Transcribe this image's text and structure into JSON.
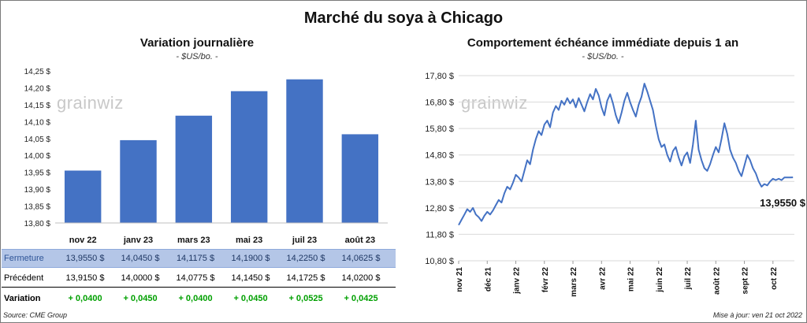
{
  "title": "Marché du soya à Chicago",
  "left": {
    "title": "Variation journalière",
    "subtitle": "- $US/bo. -",
    "watermark": "grainwiz"
  },
  "right": {
    "title": "Comportement échéance immédiate depuis 1 an",
    "subtitle": "- $US/bo. -",
    "watermark": "grainwiz",
    "last_label": "13,9550 $"
  },
  "table": {
    "rows": [
      {
        "label": "Fermeture",
        "values": [
          "13,9550  $",
          "14,0450  $",
          "14,1175  $",
          "14,1900  $",
          "14,2250  $",
          "14,0625  $"
        ]
      },
      {
        "label": "Précédent",
        "values": [
          "13,9150  $",
          "14,0000  $",
          "14,0775  $",
          "14,1450  $",
          "14,1725  $",
          "14,0200  $"
        ]
      },
      {
        "label": "Variation",
        "values": [
          "+ 0,0400",
          "+ 0,0450",
          "+ 0,0400",
          "+ 0,0450",
          "+ 0,0525",
          "+ 0,0425"
        ]
      }
    ]
  },
  "footer": {
    "source": "Source: CME Group",
    "updated": "Mise à jour: ven 21 oct 2022"
  },
  "colors": {
    "bar": "#4472c4",
    "line": "#4472c4",
    "grid": "#d9d9d9",
    "positive": "#00a000"
  },
  "chart_data": [
    {
      "type": "bar",
      "categories": [
        "nov 22",
        "janv 23",
        "mars 23",
        "mai 23",
        "juil 23",
        "août 23"
      ],
      "values": [
        13.955,
        14.045,
        14.1175,
        14.19,
        14.225,
        14.0625
      ],
      "ylim": [
        13.8,
        14.25
      ],
      "yticks": [
        13.8,
        13.85,
        13.9,
        13.95,
        14.0,
        14.05,
        14.1,
        14.15,
        14.2,
        14.25
      ],
      "ytick_labels": [
        "13,80 $",
        "13,85 $",
        "13,90 $",
        "13,95 $",
        "14,00 $",
        "14,05 $",
        "14,10 $",
        "14,15 $",
        "14,20 $",
        "14,25 $"
      ],
      "grid": false
    },
    {
      "type": "line",
      "ylim": [
        10.8,
        17.8
      ],
      "yticks": [
        10.8,
        11.8,
        12.8,
        13.8,
        14.8,
        15.8,
        16.8,
        17.8
      ],
      "ytick_labels": [
        "10,80 $",
        "11,80 $",
        "12,80 $",
        "13,80 $",
        "14,80 $",
        "15,80 $",
        "16,80 $",
        "17,80 $"
      ],
      "x_labels": [
        "nov 21",
        "déc 21",
        "janv 22",
        "févr 22",
        "mars 22",
        "avr 22",
        "mai 22",
        "juin 22",
        "juil 22",
        "août 22",
        "sept 22",
        "oct 22"
      ],
      "x_months": [
        0,
        1,
        2,
        3,
        4,
        5,
        6,
        7,
        8,
        9,
        10,
        11
      ],
      "grid": true,
      "series": [
        {
          "x": [
            0.0,
            0.1,
            0.2,
            0.3,
            0.4,
            0.5,
            0.6,
            0.7,
            0.8,
            0.9,
            1.0,
            1.1,
            1.2,
            1.3,
            1.4,
            1.5,
            1.6,
            1.7,
            1.8,
            1.9,
            2.0,
            2.1,
            2.2,
            2.3,
            2.4,
            2.5,
            2.6,
            2.7,
            2.8,
            2.9,
            3.0,
            3.1,
            3.2,
            3.3,
            3.4,
            3.5,
            3.6,
            3.7,
            3.8,
            3.9,
            4.0,
            4.1,
            4.2,
            4.3,
            4.4,
            4.5,
            4.6,
            4.7,
            4.8,
            4.9,
            5.0,
            5.1,
            5.2,
            5.3,
            5.4,
            5.5,
            5.6,
            5.7,
            5.8,
            5.9,
            6.0,
            6.1,
            6.2,
            6.3,
            6.4,
            6.5,
            6.6,
            6.7,
            6.8,
            6.9,
            7.0,
            7.1,
            7.2,
            7.3,
            7.4,
            7.5,
            7.6,
            7.7,
            7.8,
            7.9,
            8.0,
            8.1,
            8.2,
            8.3,
            8.4,
            8.5,
            8.6,
            8.7,
            8.8,
            8.9,
            9.0,
            9.1,
            9.2,
            9.3,
            9.4,
            9.5,
            9.6,
            9.7,
            9.8,
            9.9,
            10.0,
            10.1,
            10.2,
            10.3,
            10.4,
            10.5,
            10.6,
            10.7,
            10.8,
            10.9,
            11.0,
            11.1,
            11.2,
            11.3,
            11.4,
            11.5,
            11.6,
            11.7
          ],
          "values": [
            12.15,
            12.35,
            12.55,
            12.75,
            12.65,
            12.8,
            12.55,
            12.45,
            12.3,
            12.5,
            12.65,
            12.55,
            12.7,
            12.9,
            13.1,
            13.0,
            13.35,
            13.6,
            13.5,
            13.75,
            14.05,
            13.95,
            13.8,
            14.2,
            14.6,
            14.45,
            15.0,
            15.4,
            15.7,
            15.55,
            15.95,
            16.1,
            15.85,
            16.4,
            16.65,
            16.5,
            16.85,
            16.7,
            16.95,
            16.75,
            16.9,
            16.6,
            16.95,
            16.7,
            16.45,
            16.8,
            17.1,
            16.9,
            17.3,
            17.05,
            16.6,
            16.3,
            16.85,
            17.1,
            16.75,
            16.3,
            16.0,
            16.4,
            16.85,
            17.15,
            16.8,
            16.5,
            16.25,
            16.7,
            17.0,
            17.5,
            17.2,
            16.85,
            16.5,
            15.9,
            15.4,
            15.1,
            15.2,
            14.8,
            14.55,
            14.95,
            15.1,
            14.7,
            14.4,
            14.75,
            14.9,
            14.5,
            15.2,
            16.1,
            15.0,
            14.6,
            14.3,
            14.2,
            14.45,
            14.8,
            15.1,
            14.9,
            15.4,
            16.0,
            15.6,
            15.0,
            14.7,
            14.5,
            14.2,
            14.0,
            14.4,
            14.8,
            14.6,
            14.3,
            14.1,
            13.8,
            13.6,
            13.7,
            13.65,
            13.8,
            13.9,
            13.85,
            13.9,
            13.85,
            13.95,
            13.95,
            13.95,
            13.955
          ]
        }
      ]
    }
  ]
}
